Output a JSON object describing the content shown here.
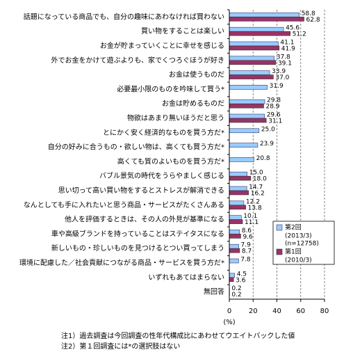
{
  "chart_data": {
    "type": "hbar",
    "categories": [
      "話題になっている商品でも、自分の趣味にあわなければ買わない",
      "買い物をすることは楽しい",
      "お金が貯まっていくことに幸せを感じる",
      "外でお金をかけて遊ぶよりも、家でくつろぐほうが好き",
      "お金は使うものだ",
      "必要最小限のものを吟味して買う*",
      "お金は貯めるものだ",
      "物欲はあまり無いほうだと思う",
      "とにかく安く経済的なものを買う方だ*",
      "自分の好みに合うもの・欲しい物は、高くても買う方だ*",
      "高くても質のよいものを買う方だ*",
      "バブル景気の時代をうらやましく感じる",
      "思い切って高い買い物をするとストレスが解消できる",
      "なんとしても手に入れたいと思う商品・サービスがたくさんある",
      "他人を評価するときは、その人の外見が基準になる",
      "車や高級ブランドを持っていることはステイタスになる",
      "新しいもの・珍しいものを見つけるとつい買ってしまう",
      "環境に配慮した／社会貢献につながる商品・サービスを買う方だ*",
      "いずれもあてはまらない",
      "無回答"
    ],
    "series": [
      {
        "name": "第2回",
        "legend_sub": [
          "(2013/3)",
          "(n=12758)"
        ],
        "color": "#99ccff",
        "stroke": "#333366",
        "values": [
          58.8,
          45.6,
          41.1,
          37.8,
          33.9,
          31.9,
          29.8,
          29.6,
          25.0,
          23.9,
          20.8,
          15.0,
          14.7,
          12.2,
          10.1,
          8.6,
          7.9,
          7.8,
          4.5,
          0.2
        ],
        "value_labels": [
          "58.8",
          "45.6",
          "41.1",
          "37.8",
          "33.9",
          "31.9",
          "29.8",
          "29.6",
          "25.0",
          "23.9",
          "20.8",
          "15.0",
          "14.7",
          "12.2",
          "10.1",
          "8.6",
          "7.9",
          "7.8",
          "4.5",
          "0.2"
        ]
      },
      {
        "name": "第1回",
        "legend_sub": [
          "(2010/3)"
        ],
        "color": "#993366",
        "stroke": "#333333",
        "values": [
          62.8,
          51.2,
          41.9,
          39.1,
          37.0,
          null,
          28.9,
          31.1,
          null,
          null,
          null,
          18.0,
          16.2,
          13.8,
          11.1,
          9.6,
          8.7,
          null,
          3.6,
          0.2
        ],
        "value_labels": [
          "62.8",
          "51.2",
          "41.9",
          "39.1",
          "37.0",
          null,
          "28.9",
          "31.1",
          null,
          null,
          null,
          "18.0",
          "16.2",
          "13.8",
          "11.1",
          "9.6",
          "8.7",
          null,
          "3.6",
          "0.2"
        ]
      }
    ],
    "xlim": [
      0,
      80
    ],
    "xticks": [
      0,
      20,
      40,
      60,
      80
    ],
    "grid": true,
    "legend": "lower right",
    "xlabel": "(%)",
    "notes": [
      "注1）過去調査は今回調査の性年代構成比にあわせてウエイトバックした値",
      "注2）第１回調査には*の選択肢はない"
    ]
  }
}
